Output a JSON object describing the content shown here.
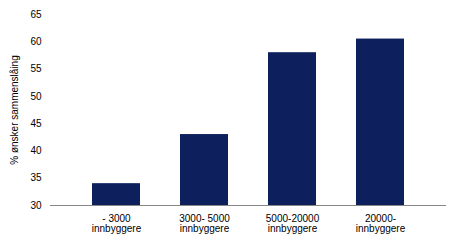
{
  "chart_data": {
    "type": "bar",
    "categories": [
      "- 3000\ninnbyggere",
      "3000- 5000\ninnbyggere",
      "5000-20000\ninnbyggere",
      "20000-\ninnbyggere"
    ],
    "values": [
      34,
      43,
      58,
      60.5
    ],
    "color": "#0d1f5c",
    "ylabel": "% ønsker sammenslåing",
    "ylim": [
      30,
      65
    ],
    "yticks": [
      30,
      35,
      40,
      45,
      50,
      55,
      60,
      65
    ],
    "grid": false
  }
}
